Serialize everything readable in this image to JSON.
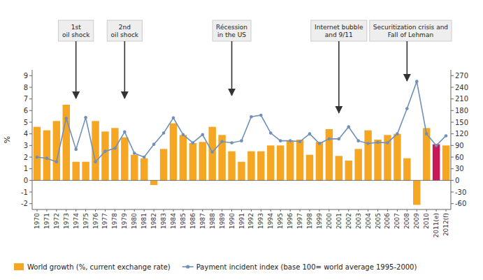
{
  "chart_data": {
    "type": "bar",
    "categories": [
      "1970",
      "1971",
      "1972",
      "1973",
      "1974",
      "1975",
      "1976",
      "1977",
      "1978",
      "1979",
      "1980",
      "1981",
      "1982",
      "1983",
      "1984",
      "1985",
      "1986",
      "1987",
      "1988",
      "1989",
      "1990",
      "1991",
      "1992",
      "1993",
      "1994",
      "1995",
      "1996",
      "1997",
      "1998",
      "1999",
      "2000",
      "2001",
      "2002",
      "2003",
      "2004",
      "2005",
      "2006",
      "2007",
      "2008",
      "2009",
      "2010",
      "2011(e)",
      "2012(f)"
    ],
    "series": [
      {
        "name": "World growth (%, current exchange rate)",
        "type": "bar",
        "color": "#F5A623",
        "colors": [
          "#F5A623",
          "#F5A623",
          "#F5A623",
          "#F5A623",
          "#F5A623",
          "#F5A623",
          "#F5A623",
          "#F5A623",
          "#F5A623",
          "#F5A623",
          "#F5A623",
          "#F5A623",
          "#F5A623",
          "#F5A623",
          "#F5A623",
          "#F5A623",
          "#F5A623",
          "#F5A623",
          "#F5A623",
          "#F5A623",
          "#F5A623",
          "#F5A623",
          "#F5A623",
          "#F5A623",
          "#F5A623",
          "#F5A623",
          "#F5A623",
          "#F5A623",
          "#F5A623",
          "#F5A623",
          "#F5A623",
          "#F5A623",
          "#F5A623",
          "#F5A623",
          "#F5A623",
          "#F5A623",
          "#F5A623",
          "#F5A623",
          "#F5A623",
          "#F5A623",
          "#F5A623",
          "#C8185A",
          "#F5A623"
        ],
        "values": [
          4.6,
          4.3,
          5.1,
          6.5,
          1.6,
          1.6,
          5.1,
          4.2,
          4.5,
          3.7,
          2.2,
          1.9,
          -0.4,
          2.7,
          4.9,
          3.9,
          3.2,
          3.3,
          4.6,
          3.9,
          2.5,
          1.6,
          2.5,
          2.5,
          3.0,
          3.0,
          3.4,
          3.5,
          2.2,
          3.3,
          4.4,
          2.1,
          1.7,
          2.7,
          4.3,
          3.5,
          3.9,
          4.0,
          1.9,
          -2.1,
          4.5,
          3.1,
          3.0
        ]
      },
      {
        "name": "Payment incident index (base 100= world average 1995-2000)",
        "type": "line",
        "axis": "y2",
        "color": "#7090B8",
        "marker": "circle",
        "values": [
          60,
          57,
          48,
          160,
          80,
          162,
          48,
          75,
          83,
          125,
          70,
          60,
          93,
          122,
          161,
          118,
          97,
          118,
          73,
          100,
          97,
          102,
          164,
          168,
          122,
          102,
          102,
          100,
          120,
          95,
          107,
          107,
          138,
          102,
          95,
          98,
          97,
          120,
          185,
          255,
          120,
          90,
          115
        ]
      }
    ],
    "y_label": "%",
    "ylim": [
      -2.5,
      9.5
    ],
    "yticks": [
      -2,
      -1,
      0,
      1,
      2,
      3,
      4,
      5,
      6,
      7,
      8,
      9
    ],
    "y2lim": [
      -75,
      285
    ],
    "y2ticks": [
      -60,
      -30,
      0,
      30,
      60,
      90,
      120,
      150,
      180,
      210,
      240,
      270
    ],
    "annotations": [
      {
        "text": "1st\noil shock",
        "x": "1974",
        "y": 7.05
      },
      {
        "text": "2nd\noil shock",
        "x": "1979",
        "y": 7.05
      },
      {
        "text": "Récession\nin the US",
        "x": "1990",
        "y": 7.3
      },
      {
        "text": "Internet bubble\nand 9/11",
        "x": "2001",
        "y": 5.8
      },
      {
        "text": "Securitization crisis and\nFall of Lehman",
        "x": "2008",
        "y": 8.55
      }
    ],
    "grid": false,
    "legend": "bottom"
  }
}
